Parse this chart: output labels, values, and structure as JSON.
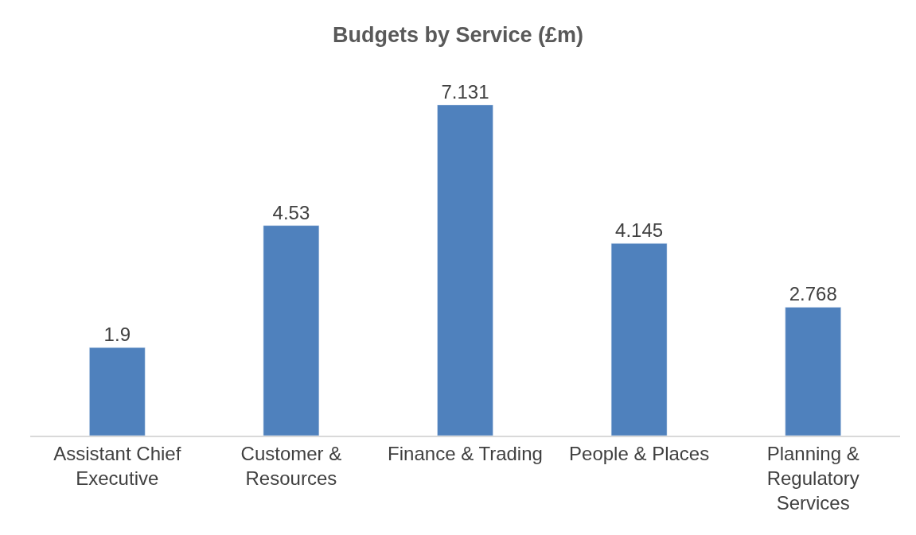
{
  "chart_data": {
    "type": "bar",
    "title": "Budgets by Service (£m)",
    "categories": [
      "Assistant Chief Executive",
      "Customer & Resources",
      "Finance & Trading",
      "People & Places",
      "Planning & Regulatory Services"
    ],
    "values": [
      1.9,
      4.53,
      7.131,
      4.145,
      2.768
    ],
    "color": "#4f81bd",
    "data_labels": true
  }
}
